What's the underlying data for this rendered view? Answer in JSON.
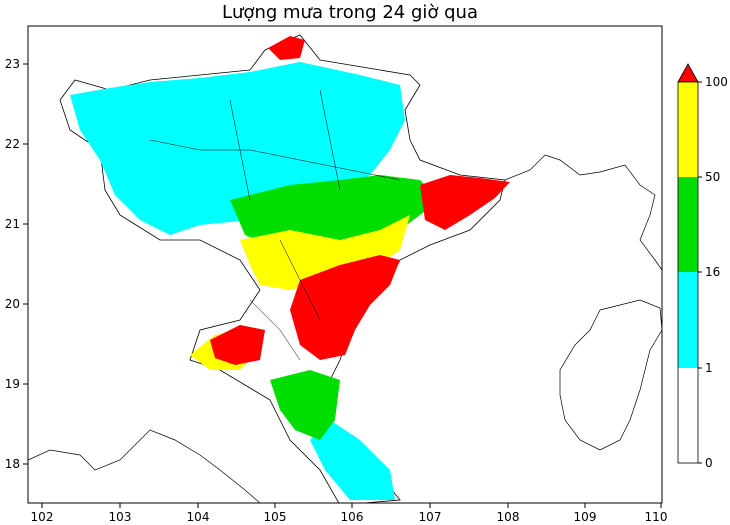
{
  "title": "Lượng mưa trong 24 giờ qua",
  "map": {
    "x_ticks": [
      "102",
      "103",
      "104",
      "105",
      "106",
      "107",
      "108",
      "109",
      "110"
    ],
    "y_ticks": [
      "23",
      "22",
      "21",
      "20",
      "19",
      "18"
    ],
    "x_range": [
      101.8,
      110.0
    ],
    "y_range": [
      17.5,
      23.5
    ]
  },
  "colorbar": {
    "ticks": [
      "100",
      "50",
      "16",
      "1",
      "0"
    ],
    "bands": [
      {
        "label": "0-1",
        "color": "#ffffff"
      },
      {
        "label": "1-16",
        "color": "#00ffff"
      },
      {
        "label": "16-50",
        "color": "#00dd00"
      },
      {
        "label": "50-100",
        "color": "#ffff00"
      },
      {
        "label": ">100",
        "color": "#ff0000"
      }
    ],
    "extend_color": "#ff0000"
  }
}
